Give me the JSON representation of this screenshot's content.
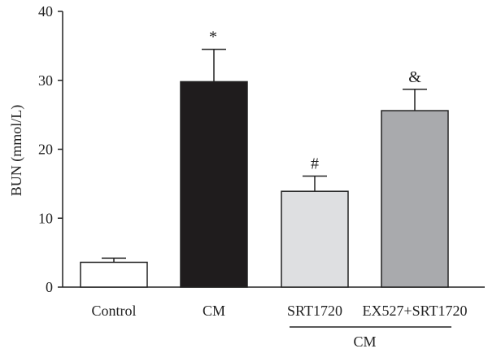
{
  "chart_data": {
    "type": "bar",
    "ylabel": "BUN (mmol/L)",
    "xlabel": "",
    "ylim": [
      0,
      40
    ],
    "yticks": [
      0,
      10,
      20,
      30,
      40
    ],
    "grid": false,
    "categories": [
      "Control",
      "CM",
      "SRT1720",
      "EX527+SRT1720"
    ],
    "values": [
      3.6,
      29.8,
      13.9,
      25.6
    ],
    "errors": [
      0.6,
      4.7,
      2.2,
      3.1
    ],
    "significance": [
      "",
      "*",
      "#",
      "&"
    ],
    "bar_colors": [
      "#ffffff",
      "#1f1c1d",
      "#dedfe1",
      "#a9aaad"
    ],
    "group_bracket": {
      "label": "CM",
      "from_category": 2,
      "to_category": 3
    }
  }
}
